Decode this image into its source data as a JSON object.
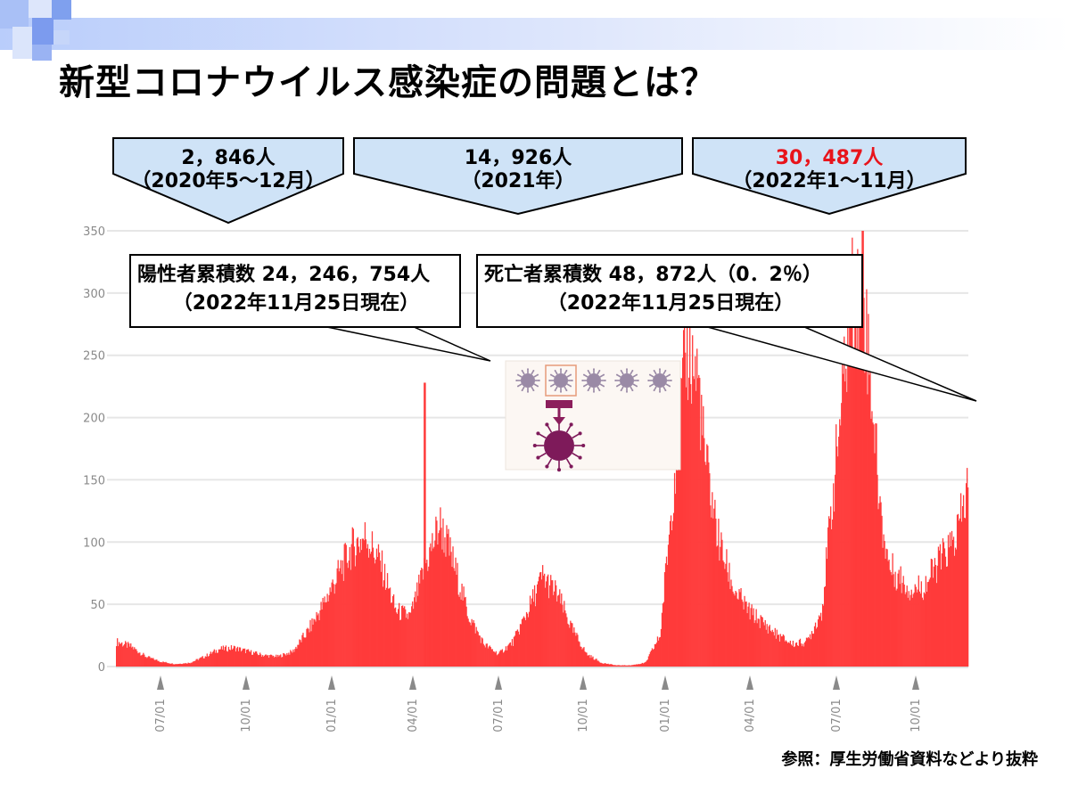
{
  "title": "新型コロナウイルス感染症の問題とは？",
  "source": "参照：厚生労働省資料などより抜粋",
  "callouts": [
    {
      "value": "2，846人",
      "period": "（2020年5～12月）"
    },
    {
      "value": "14，926人",
      "period": "（2021年）"
    },
    {
      "value": "30，487人",
      "period": "（2022年1～11月）"
    }
  ],
  "boxes": [
    {
      "line1": "陽性者累積数 24，246，754人",
      "line2": "（2022年11月25日現在）"
    },
    {
      "line1": "死亡者累積数 48，872人（0．2％）",
      "line2": "（2022年11月25日現在）"
    }
  ],
  "colors": {
    "bars": "#ff3b3b",
    "callout_fill": "#cfe3f7",
    "highlight": "#e8141b"
  },
  "chart_data": {
    "type": "bar",
    "xlabel": "",
    "ylabel": "",
    "ylim": [
      0,
      350
    ],
    "yticks": [
      0,
      50,
      100,
      150,
      200,
      250,
      300,
      350
    ],
    "xtick_labels": [
      "07/01",
      "10/01",
      "01/01",
      "04/01",
      "07/01",
      "10/01",
      "01/01",
      "04/01",
      "07/01",
      "10/01"
    ],
    "grid": true,
    "profile_points": [
      [
        0,
        20
      ],
      [
        0.5,
        16
      ],
      [
        1,
        8
      ],
      [
        1.5,
        4
      ],
      [
        2,
        2
      ],
      [
        2.5,
        3
      ],
      [
        3,
        8
      ],
      [
        3.5,
        14
      ],
      [
        4,
        15
      ],
      [
        4.5,
        12
      ],
      [
        5,
        9
      ],
      [
        5.5,
        8
      ],
      [
        6,
        12
      ],
      [
        6.5,
        28
      ],
      [
        7,
        48
      ],
      [
        7.5,
        72
      ],
      [
        8,
        95
      ],
      [
        8.5,
        105
      ],
      [
        9,
        82
      ],
      [
        9.5,
        45
      ],
      [
        10,
        40
      ],
      [
        10.5,
        80
      ],
      [
        11,
        115
      ],
      [
        11.3,
        95
      ],
      [
        11.5,
        80
      ],
      [
        12,
        40
      ],
      [
        12.5,
        18
      ],
      [
        13,
        10
      ],
      [
        13.5,
        20
      ],
      [
        14,
        45
      ],
      [
        14.5,
        72
      ],
      [
        15,
        58
      ],
      [
        15.5,
        30
      ],
      [
        16,
        10
      ],
      [
        16.5,
        3
      ],
      [
        17,
        1
      ],
      [
        17.5,
        1
      ],
      [
        18,
        3
      ],
      [
        18.5,
        25
      ],
      [
        19,
        160
      ],
      [
        19.4,
        255
      ],
      [
        19.8,
        230
      ],
      [
        20,
        170
      ],
      [
        20.5,
        100
      ],
      [
        21,
        62
      ],
      [
        21.5,
        45
      ],
      [
        22,
        35
      ],
      [
        22.5,
        25
      ],
      [
        23,
        18
      ],
      [
        23.5,
        20
      ],
      [
        24,
        45
      ],
      [
        24.5,
        170
      ],
      [
        25,
        295
      ],
      [
        25.4,
        300
      ],
      [
        25.7,
        220
      ],
      [
        26,
        120
      ],
      [
        26.3,
        80
      ],
      [
        26.5,
        75
      ],
      [
        27,
        62
      ],
      [
        27.5,
        65
      ],
      [
        28,
        85
      ],
      [
        28.5,
        100
      ],
      [
        28.75,
        120
      ],
      [
        29,
        150
      ]
    ],
    "spikes": [
      {
        "x": 10.5,
        "y": 228
      },
      {
        "x": 25.4,
        "y": 350
      }
    ]
  }
}
